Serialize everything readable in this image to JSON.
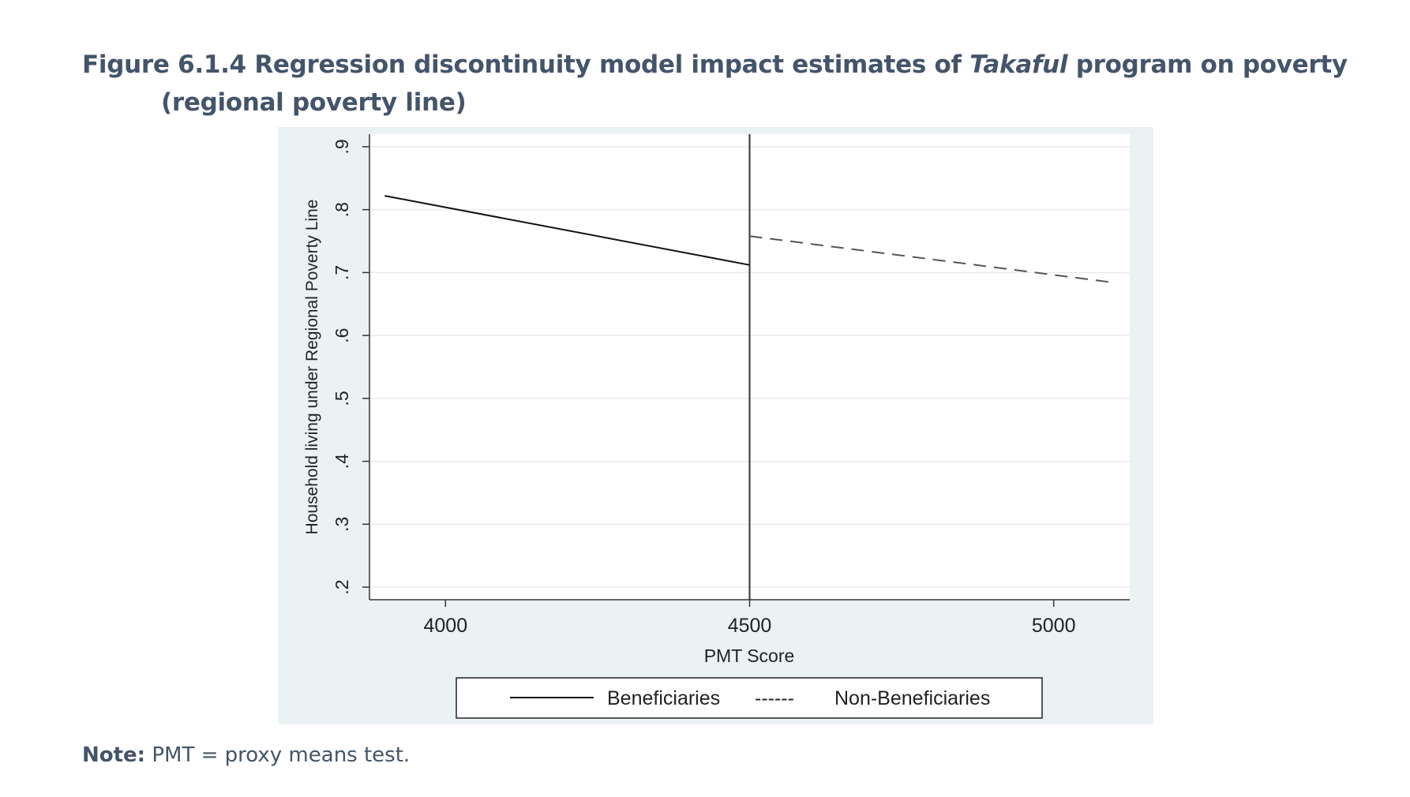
{
  "figure": {
    "title_prefix": "Figure 6.1.4 Regression discontinuity model impact estimates of ",
    "title_italic": "Takaful",
    "title_suffix": " program on poverty",
    "title_line2": "(regional poverty line)"
  },
  "note": {
    "label": "Note:",
    "text": " PMT = proxy means test."
  },
  "colors": {
    "panel_background": "#eaf2f3",
    "plot_background": "#ffffff",
    "gridline": "#e8ecee",
    "axis": "#333333",
    "title_text": "#44546a",
    "series_line": "#111111"
  },
  "chart_data": {
    "type": "line",
    "xlabel": "PMT Score",
    "ylabel": "Household living under Regional Poverty Line",
    "xlim": [
      3875,
      5125
    ],
    "ylim": [
      0.18,
      0.92
    ],
    "x_ticks": [
      4000,
      4500,
      5000
    ],
    "x_tick_labels": [
      "4000",
      "4500",
      "5000"
    ],
    "y_ticks": [
      0.2,
      0.3,
      0.4,
      0.5,
      0.6,
      0.7,
      0.8,
      0.9
    ],
    "y_tick_labels": [
      ".2",
      ".3",
      ".4",
      ".5",
      ".6",
      ".7",
      ".8",
      ".9"
    ],
    "grid": true,
    "cutoff_line": {
      "x": 4500
    },
    "series": [
      {
        "name": "Beneficiaries",
        "style": "solid",
        "x": [
          3900,
          4500
        ],
        "y": [
          0.822,
          0.712
        ]
      },
      {
        "name": "Non-Beneficiaries",
        "style": "dashed",
        "x": [
          4500,
          5100
        ],
        "y": [
          0.758,
          0.684
        ]
      }
    ],
    "legend": {
      "placement": "bottom",
      "entries": [
        "Beneficiaries",
        "Non-Beneficiaries"
      ],
      "dash_sample": "------"
    }
  }
}
